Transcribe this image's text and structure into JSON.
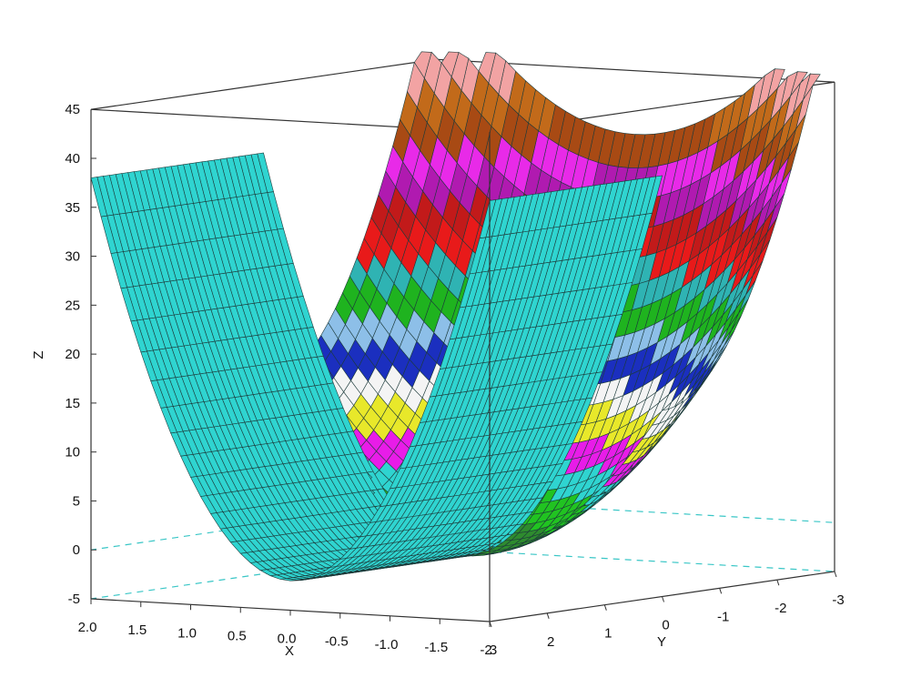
{
  "chart_data": {
    "type": "surface3d",
    "title": "",
    "xlabel": "X",
    "ylabel": "Y",
    "zlabel": "Z",
    "xlim": [
      -2,
      2
    ],
    "ylim": [
      -3,
      3
    ],
    "zlim": [
      -5,
      45
    ],
    "x_ticks": [
      "2.0",
      "1.5",
      "1.0",
      "0.5",
      "0.0",
      "-0.5",
      "-1.0",
      "-1.5",
      "-2"
    ],
    "y_ticks": [
      "3",
      "2",
      "1",
      "0",
      "-1",
      "-2",
      "-3"
    ],
    "z_ticks": [
      "-5",
      "0",
      "5",
      "10",
      "15",
      "20",
      "25",
      "30",
      "35",
      "40",
      "45"
    ],
    "surfaces": [
      {
        "name": "cyan surface",
        "function": "z = 10*x^2 - 2",
        "color": "#2fd4d0",
        "x_range": [
          -2,
          2
        ],
        "y_range": [
          -3,
          0
        ]
      },
      {
        "name": "banded surface",
        "function": "z = 4*x^2 + 4.5*y^2 - 2",
        "x_range": [
          -2,
          2
        ],
        "y_range": [
          0,
          3
        ],
        "colormap": "jet-banded",
        "band_colors": [
          "#1a1a6b",
          "#2e8b2e",
          "#21c321",
          "#2fd4d0",
          "#e81ce8",
          "#e8e82a",
          "#f4f4f4",
          "#1b2fbf",
          "#8dbfe8",
          "#1fb31f",
          "#2fb3b3",
          "#e81a1a",
          "#c21a1a",
          "#b01ab0",
          "#e82ae8",
          "#a84a14",
          "#c26a1a",
          "#f2a3a3"
        ]
      }
    ],
    "grid": false,
    "legend": "none"
  }
}
